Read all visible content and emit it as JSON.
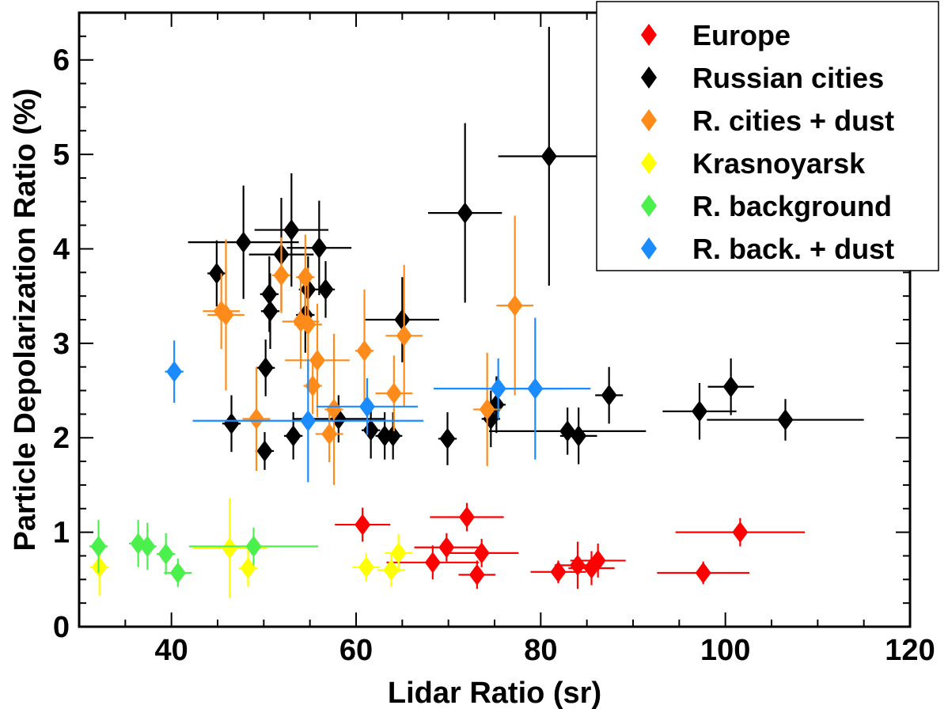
{
  "chart_data": {
    "type": "scatter",
    "xlabel": "Lidar Ratio (sr)",
    "ylabel": "Particle Depolarization Ratio (%)",
    "xlim": [
      30,
      120
    ],
    "ylim": [
      0,
      6.5
    ],
    "xticks": [
      40,
      60,
      80,
      100,
      120
    ],
    "yticks": [
      0,
      1,
      2,
      3,
      4,
      5,
      6
    ],
    "grid": false,
    "legend_position": "top-right",
    "series": [
      {
        "name": "Europe",
        "color": "#ff0000",
        "points": [
          {
            "x": 60.7,
            "y": 1.08,
            "xerr": 3.0,
            "yerr": 0.18
          },
          {
            "x": 68.3,
            "y": 0.68,
            "xerr": 5.0,
            "yerr": 0.18
          },
          {
            "x": 69.8,
            "y": 0.84,
            "xerr": 3.5,
            "yerr": 0.15
          },
          {
            "x": 72.0,
            "y": 1.16,
            "xerr": 4.0,
            "yerr": 0.15
          },
          {
            "x": 73.1,
            "y": 0.55,
            "xerr": 2.0,
            "yerr": 0.15
          },
          {
            "x": 73.6,
            "y": 0.78,
            "xerr": 4.0,
            "yerr": 0.15
          },
          {
            "x": 81.9,
            "y": 0.58,
            "xerr": 3.0,
            "yerr": 0.12
          },
          {
            "x": 84.0,
            "y": 0.65,
            "xerr": 2.5,
            "yerr": 0.25
          },
          {
            "x": 85.5,
            "y": 0.62,
            "xerr": 2.5,
            "yerr": 0.18
          },
          {
            "x": 86.2,
            "y": 0.7,
            "xerr": 3.0,
            "yerr": 0.18
          },
          {
            "x": 97.6,
            "y": 0.57,
            "xerr": 5.0,
            "yerr": 0.12
          },
          {
            "x": 101.6,
            "y": 1.0,
            "xerr": 7.0,
            "yerr": 0.15
          }
        ]
      },
      {
        "name": "Russian cities",
        "color": "#000000",
        "points": [
          {
            "x": 44.9,
            "y": 3.74,
            "xerr": 1.0,
            "yerr": 0.35
          },
          {
            "x": 46.5,
            "y": 2.15,
            "xerr": 1.0,
            "yerr": 0.3
          },
          {
            "x": 47.8,
            "y": 4.07,
            "xerr": 6.0,
            "yerr": 0.6
          },
          {
            "x": 50.1,
            "y": 1.86,
            "xerr": 1.0,
            "yerr": 0.2
          },
          {
            "x": 50.2,
            "y": 2.74,
            "xerr": 1.0,
            "yerr": 0.3
          },
          {
            "x": 50.6,
            "y": 3.52,
            "xerr": 1.0,
            "yerr": 0.4
          },
          {
            "x": 50.7,
            "y": 3.34,
            "xerr": 1.0,
            "yerr": 0.4
          },
          {
            "x": 51.9,
            "y": 3.94,
            "xerr": 3.5,
            "yerr": 0.6
          },
          {
            "x": 53.0,
            "y": 4.2,
            "xerr": 4.0,
            "yerr": 0.6
          },
          {
            "x": 53.2,
            "y": 2.02,
            "xerr": 1.0,
            "yerr": 0.25
          },
          {
            "x": 54.5,
            "y": 3.3,
            "xerr": 1.0,
            "yerr": 0.4
          },
          {
            "x": 54.8,
            "y": 3.57,
            "xerr": 1.0,
            "yerr": 0.35
          },
          {
            "x": 56.0,
            "y": 4.01,
            "xerr": 3.5,
            "yerr": 0.5
          },
          {
            "x": 56.7,
            "y": 3.57,
            "xerr": 1.0,
            "yerr": 0.3
          },
          {
            "x": 58.1,
            "y": 2.2,
            "xerr": 5.0,
            "yerr": 0.25
          },
          {
            "x": 61.6,
            "y": 2.08,
            "xerr": 1.0,
            "yerr": 0.3
          },
          {
            "x": 63.1,
            "y": 2.02,
            "xerr": 1.0,
            "yerr": 0.25
          },
          {
            "x": 64.0,
            "y": 2.02,
            "xerr": 1.0,
            "yerr": 0.25
          },
          {
            "x": 65.0,
            "y": 3.25,
            "xerr": 4.0,
            "yerr": 0.45
          },
          {
            "x": 69.9,
            "y": 1.99,
            "xerr": 1.0,
            "yerr": 0.28
          },
          {
            "x": 71.8,
            "y": 4.38,
            "xerr": 4.0,
            "yerr": 0.95
          },
          {
            "x": 74.6,
            "y": 2.2,
            "xerr": 1.0,
            "yerr": 0.3
          },
          {
            "x": 75.2,
            "y": 2.35,
            "xerr": 1.0,
            "yerr": 0.3
          },
          {
            "x": 80.9,
            "y": 4.98,
            "xerr": 5.5,
            "yerr": 1.37
          },
          {
            "x": 82.9,
            "y": 2.07,
            "xerr": 8.5,
            "yerr": 0.25
          },
          {
            "x": 84.1,
            "y": 2.02,
            "xerr": 2.0,
            "yerr": 0.3
          },
          {
            "x": 87.4,
            "y": 2.45,
            "xerr": 1.5,
            "yerr": 0.3
          },
          {
            "x": 97.2,
            "y": 2.28,
            "xerr": 4.0,
            "yerr": 0.3
          },
          {
            "x": 100.6,
            "y": 2.54,
            "xerr": 2.5,
            "yerr": 0.3
          },
          {
            "x": 106.5,
            "y": 2.19,
            "xerr": 8.5,
            "yerr": 0.22
          }
        ]
      },
      {
        "name": "R. cities + dust",
        "color": "#ff8c1a",
        "points": [
          {
            "x": 45.4,
            "y": 3.34,
            "xerr": 2.0,
            "yerr": 0.4
          },
          {
            "x": 45.9,
            "y": 3.3,
            "xerr": 2.0,
            "yerr": 0.8
          },
          {
            "x": 49.2,
            "y": 2.2,
            "xerr": 1.5,
            "yerr": 0.55
          },
          {
            "x": 51.9,
            "y": 3.72,
            "xerr": 1.0,
            "yerr": 0.4
          },
          {
            "x": 54.0,
            "y": 3.23,
            "xerr": 2.0,
            "yerr": 0.5
          },
          {
            "x": 54.5,
            "y": 3.7,
            "xerr": 1.0,
            "yerr": 0.45
          },
          {
            "x": 54.8,
            "y": 3.2,
            "xerr": 1.5,
            "yerr": 0.6
          },
          {
            "x": 55.3,
            "y": 2.55,
            "xerr": 1.0,
            "yerr": 0.3
          },
          {
            "x": 55.8,
            "y": 2.82,
            "xerr": 3.5,
            "yerr": 0.6
          },
          {
            "x": 57.1,
            "y": 2.04,
            "xerr": 1.5,
            "yerr": 0.3
          },
          {
            "x": 57.6,
            "y": 2.3,
            "xerr": 1.0,
            "yerr": 0.8
          },
          {
            "x": 60.9,
            "y": 2.92,
            "xerr": 1.0,
            "yerr": 0.65
          },
          {
            "x": 64.1,
            "y": 2.47,
            "xerr": 2.0,
            "yerr": 0.4
          },
          {
            "x": 65.2,
            "y": 3.08,
            "xerr": 2.0,
            "yerr": 0.75
          },
          {
            "x": 74.2,
            "y": 2.3,
            "xerr": 1.5,
            "yerr": 0.6
          },
          {
            "x": 77.2,
            "y": 3.4,
            "xerr": 2.0,
            "yerr": 0.95
          }
        ]
      },
      {
        "name": "Krasnoyarsk",
        "color": "#ffff00",
        "points": [
          {
            "x": 32.2,
            "y": 0.63,
            "xerr": 1.0,
            "yerr": 0.3
          },
          {
            "x": 46.3,
            "y": 0.83,
            "xerr": 4.0,
            "yerr": 0.53
          },
          {
            "x": 48.3,
            "y": 0.62,
            "xerr": 1.0,
            "yerr": 0.2
          },
          {
            "x": 61.1,
            "y": 0.63,
            "xerr": 1.5,
            "yerr": 0.15
          },
          {
            "x": 63.8,
            "y": 0.6,
            "xerr": 1.5,
            "yerr": 0.18
          },
          {
            "x": 64.6,
            "y": 0.78,
            "xerr": 1.5,
            "yerr": 0.2
          }
        ]
      },
      {
        "name": "R. background",
        "color": "#4cf04c",
        "points": [
          {
            "x": 32.1,
            "y": 0.85,
            "xerr": 1.0,
            "yerr": 0.28
          },
          {
            "x": 36.4,
            "y": 0.88,
            "xerr": 1.0,
            "yerr": 0.25
          },
          {
            "x": 37.4,
            "y": 0.85,
            "xerr": 1.0,
            "yerr": 0.25
          },
          {
            "x": 39.4,
            "y": 0.77,
            "xerr": 1.0,
            "yerr": 0.22
          },
          {
            "x": 40.7,
            "y": 0.57,
            "xerr": 1.5,
            "yerr": 0.15
          },
          {
            "x": 48.9,
            "y": 0.85,
            "xerr": 7.0,
            "yerr": 0.2
          }
        ]
      },
      {
        "name": "R. back. + dust",
        "color": "#1a8cff",
        "points": [
          {
            "x": 40.3,
            "y": 2.7,
            "xerr": 1.0,
            "yerr": 0.33
          },
          {
            "x": 54.8,
            "y": 2.18,
            "xerr": 12.5,
            "yerr": 0.65
          },
          {
            "x": 61.2,
            "y": 2.33,
            "xerr": 5.5,
            "yerr": 0.3
          },
          {
            "x": 75.4,
            "y": 2.52,
            "xerr": 7.0,
            "yerr": 0.32
          },
          {
            "x": 79.4,
            "y": 2.52,
            "xerr": 6.0,
            "yerr": 0.75
          }
        ]
      }
    ]
  }
}
